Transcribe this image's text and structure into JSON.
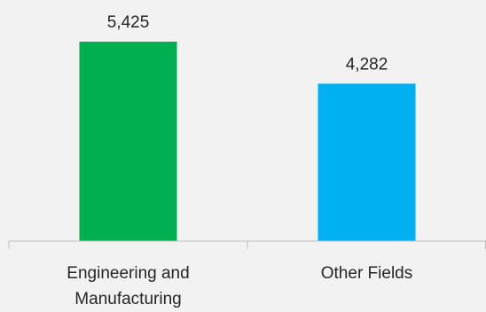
{
  "chart_data": {
    "type": "bar",
    "categories": [
      "Engineering and Manufacturing",
      "Other Fields"
    ],
    "category_lines": [
      [
        "Engineering and",
        "Manufacturing"
      ],
      [
        "Other Fields"
      ]
    ],
    "values": [
      5425,
      4282
    ],
    "value_labels": [
      "5,425",
      "4,282"
    ],
    "bar_colors": [
      "#00b050",
      "#00b0f0"
    ],
    "ylim": [
      0,
      5500
    ],
    "grid": false,
    "legend": "none",
    "title": "",
    "xlabel": "",
    "ylabel": ""
  }
}
